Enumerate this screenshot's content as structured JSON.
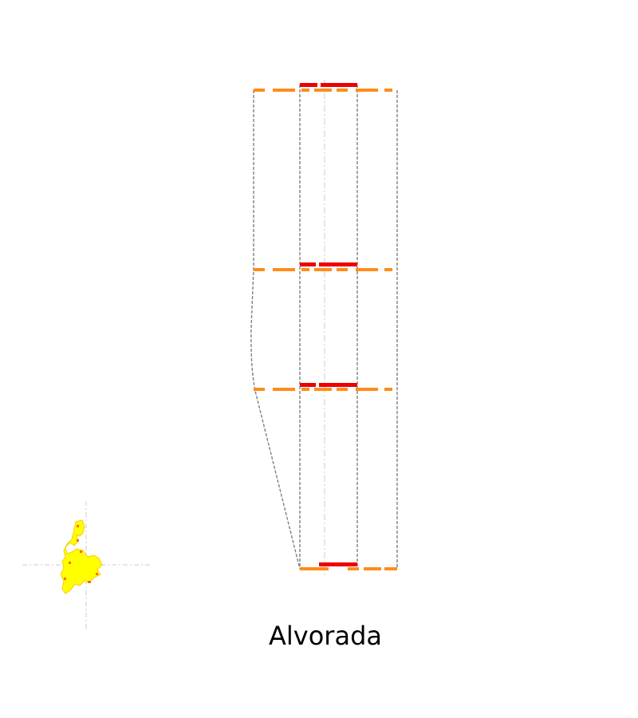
{
  "title": "Alvorada",
  "levels": [
    {
      "pattern": "orange-dash"
    },
    {
      "pattern": "red-bar"
    },
    {
      "pattern": "red-bar"
    },
    {
      "pattern": "red-bar"
    }
  ],
  "colors": {
    "outline": "#808080",
    "centerline": "#d0d0d0",
    "orange": "#ff8c1a",
    "red": "#ee0000",
    "marker_fill": "#ffff00",
    "marker_accent": "#ff6a00",
    "crosshair": "#cccccc"
  }
}
